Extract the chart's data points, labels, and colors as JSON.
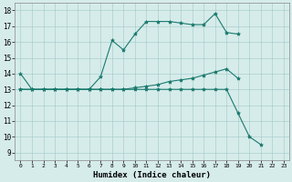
{
  "title": "",
  "xlabel": "Humidex (Indice chaleur)",
  "background_color": "#d6ecea",
  "grid_color": "#a0c8c8",
  "line_color": "#1a7a6e",
  "xlim": [
    -0.5,
    23.5
  ],
  "ylim": [
    8.5,
    18.5
  ],
  "xticks": [
    0,
    1,
    2,
    3,
    4,
    5,
    6,
    7,
    8,
    9,
    10,
    11,
    12,
    13,
    14,
    15,
    16,
    17,
    18,
    19,
    20,
    21,
    22,
    23
  ],
  "yticks": [
    9,
    10,
    11,
    12,
    13,
    14,
    15,
    16,
    17,
    18
  ],
  "line1_x": [
    0,
    1,
    2,
    3,
    4,
    5,
    6,
    7,
    8,
    9,
    10,
    11,
    12,
    13,
    14,
    15,
    16,
    17,
    18,
    19
  ],
  "line1_y": [
    14,
    13,
    13,
    13,
    13,
    13,
    13,
    13.8,
    16.1,
    15.5,
    16.5,
    17.3,
    17.3,
    17.3,
    17.2,
    17.1,
    17.1,
    17.8,
    16.6,
    16.5
  ],
  "line2_x": [
    0,
    1,
    2,
    3,
    4,
    5,
    6,
    7,
    8,
    9,
    10,
    11,
    12,
    13,
    14,
    15,
    16,
    17,
    18,
    19
  ],
  "line2_y": [
    13,
    13,
    13,
    13,
    13,
    13,
    13,
    13,
    13,
    13,
    13.1,
    13.2,
    13.3,
    13.5,
    13.6,
    13.7,
    13.9,
    14.1,
    14.3,
    13.7
  ],
  "line3_x": [
    0,
    1,
    2,
    3,
    4,
    5,
    6,
    7,
    8,
    9,
    10,
    11,
    12,
    13,
    14,
    15,
    16,
    17,
    18,
    19,
    20,
    21
  ],
  "line3_y": [
    13,
    13,
    13,
    13,
    13,
    13,
    13,
    13,
    13,
    13,
    13,
    13,
    13,
    13,
    13,
    13,
    13,
    13,
    13,
    11.5,
    10.0,
    9.5
  ]
}
